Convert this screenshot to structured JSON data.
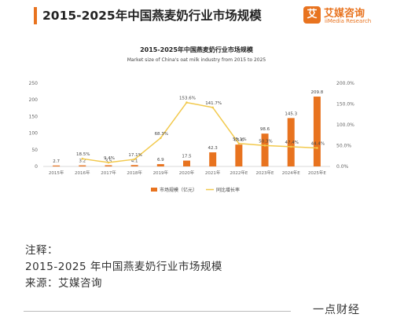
{
  "header": {
    "title": "2015-2025年中国燕麦奶行业市场规模",
    "logo_mark": "艾",
    "logo_name": "艾媒咨询",
    "logo_sub": "iiMedia Research"
  },
  "notes": {
    "line1": "注释：",
    "line2": "2015-2025 年中国燕麦奶行业市场规模",
    "line3": "来源：艾媒咨询"
  },
  "footer": {
    "brand": "一点财经"
  },
  "colors": {
    "bar": "#e8731f",
    "line": "#f2c94c",
    "accent": "#e8731f"
  },
  "chart_data": {
    "type": "bar",
    "title": "2015-2025年中国燕麦奶行业市场规模",
    "subtitle": "Market size of China's oat milk industry from 2015 to 2025",
    "categories": [
      "2015年",
      "2016年",
      "2017年",
      "2018年",
      "2019年",
      "2020年",
      "2021年",
      "2022年E",
      "2023年E",
      "2024年E",
      "2025年E"
    ],
    "series": [
      {
        "name": "市场规模（亿元）",
        "type": "bar",
        "axis": "left",
        "values": [
          2.7,
          3.2,
          3.5,
          4.1,
          6.9,
          17.5,
          42.3,
          65.6,
          98.6,
          145.3,
          209.8
        ],
        "labels": [
          "2.7",
          "3.2",
          "3.5",
          "4.1",
          "6.9",
          "17.5",
          "42.3",
          "65.6",
          "98.6",
          "145.3",
          "209.8"
        ]
      },
      {
        "name": "同比增长率",
        "type": "line",
        "axis": "right",
        "values": [
          null,
          18.5,
          9.4,
          17.1,
          68.3,
          153.6,
          141.7,
          55.1,
          50.3,
          47.4,
          44.4
        ],
        "labels": [
          "",
          "18.5%",
          "9.4%",
          "17.1%",
          "68.3%",
          "153.6%",
          "141.7%",
          "55.1%",
          "50.3%",
          "47.4%",
          "44.4%"
        ]
      }
    ],
    "ylim": [
      0,
      250
    ],
    "yticks": [
      "0",
      "50",
      "100",
      "150",
      "200",
      "250"
    ],
    "y2lim": [
      0,
      200
    ],
    "y2ticks": [
      "0.0%",
      "50.0%",
      "100.0%",
      "150.0%",
      "200.0%"
    ],
    "legend": [
      "市场规模（亿元）",
      "同比增长率"
    ],
    "legend_position": "bottom",
    "grid": false
  }
}
